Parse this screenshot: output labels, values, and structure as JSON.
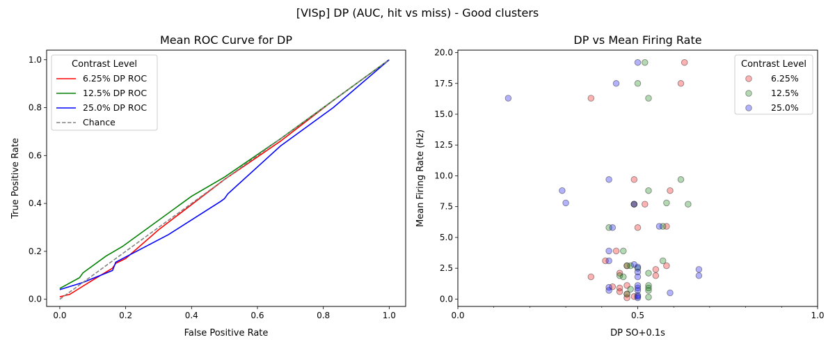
{
  "suptitle": "[VISp] DP (AUC, hit vs miss) - Good clusters",
  "chart_data": [
    {
      "type": "line",
      "title": "Mean ROC Curve for DP",
      "xlabel": "False Positive Rate",
      "ylabel": "True Positive Rate",
      "xlim": [
        -0.04,
        1.05
      ],
      "ylim": [
        -0.03,
        1.04
      ],
      "xticks": [
        0.0,
        0.2,
        0.4,
        0.6,
        0.8,
        1.0
      ],
      "yticks": [
        0.0,
        0.2,
        0.4,
        0.6,
        0.8,
        1.0
      ],
      "tick_labels_x": [
        "0.0",
        "0.2",
        "0.4",
        "0.6",
        "0.8",
        "1.0"
      ],
      "tick_labels_y": [
        "0.0",
        "0.2",
        "0.4",
        "0.6",
        "0.8",
        "1.0"
      ],
      "grid": false,
      "legend_title": "Contrast Level",
      "legend_position": "upper-left",
      "series": [
        {
          "name": "6.25% DP ROC",
          "color": "#ff0000",
          "dash": false,
          "x": [
            0.0,
            0.03,
            0.1,
            0.16,
            0.17,
            0.2,
            0.3,
            0.5,
            0.67,
            0.83,
            1.0
          ],
          "y": [
            0.01,
            0.02,
            0.08,
            0.13,
            0.15,
            0.17,
            0.29,
            0.5,
            0.66,
            0.83,
            1.0
          ]
        },
        {
          "name": "12.5% DP ROC",
          "color": "#008000",
          "dash": false,
          "x": [
            0.0,
            0.06,
            0.07,
            0.14,
            0.19,
            0.27,
            0.4,
            0.5,
            0.67,
            0.83,
            1.0
          ],
          "y": [
            0.045,
            0.09,
            0.11,
            0.18,
            0.22,
            0.3,
            0.43,
            0.51,
            0.67,
            0.83,
            1.0
          ]
        },
        {
          "name": "25.0% DP ROC",
          "color": "#0000ff",
          "dash": false,
          "x": [
            0.0,
            0.07,
            0.16,
            0.17,
            0.33,
            0.49,
            0.5,
            0.51,
            0.67,
            0.83,
            1.0
          ],
          "y": [
            0.04,
            0.07,
            0.12,
            0.155,
            0.27,
            0.41,
            0.42,
            0.44,
            0.64,
            0.8,
            1.0
          ]
        },
        {
          "name": "Chance",
          "color": "#808080",
          "dash": true,
          "x": [
            0.0,
            1.0
          ],
          "y": [
            0.0,
            1.0
          ]
        }
      ]
    },
    {
      "type": "scatter",
      "title": "DP vs Mean Firing Rate",
      "xlabel": "DP SO+0.1s",
      "ylabel": "Mean Firing Rate (Hz)",
      "xlim": [
        0.0,
        1.0
      ],
      "ylim": [
        -0.6,
        20.2
      ],
      "xticks": [
        0.0,
        0.5,
        1.0
      ],
      "tick_labels_x": [
        "0.0",
        "0.5",
        "1.0"
      ],
      "yticks": [
        0.0,
        2.5,
        5.0,
        7.5,
        10.0,
        12.5,
        15.0,
        17.5,
        20.0
      ],
      "tick_labels_y": [
        "0.0",
        "2.5",
        "5.0",
        "7.5",
        "10.0",
        "12.5",
        "15.0",
        "17.5",
        "20.0"
      ],
      "grid": false,
      "legend_title": "Contrast Level",
      "legend_position": "upper-right",
      "series": [
        {
          "name": "6.25%",
          "color": "#ff0000",
          "points": [
            [
              0.63,
              19.2
            ],
            [
              0.37,
              16.3
            ],
            [
              0.62,
              17.5
            ],
            [
              0.49,
              9.7
            ],
            [
              0.59,
              8.8
            ],
            [
              0.49,
              7.7
            ],
            [
              0.52,
              7.7
            ],
            [
              0.5,
              5.8
            ],
            [
              0.58,
              5.9
            ],
            [
              0.44,
              3.9
            ],
            [
              0.41,
              3.1
            ],
            [
              0.58,
              2.7
            ],
            [
              0.47,
              2.7
            ],
            [
              0.55,
              2.4
            ],
            [
              0.45,
              2.1
            ],
            [
              0.55,
              1.9
            ],
            [
              0.37,
              1.8
            ],
            [
              0.43,
              1.0
            ],
            [
              0.45,
              0.9
            ],
            [
              0.47,
              1.1
            ],
            [
              0.45,
              0.6
            ],
            [
              0.47,
              0.4
            ],
            [
              0.49,
              0.2
            ],
            [
              0.47,
              0.1
            ]
          ]
        },
        {
          "name": "12.5%",
          "color": "#008000",
          "points": [
            [
              0.52,
              19.2
            ],
            [
              0.5,
              17.5
            ],
            [
              0.53,
              16.3
            ],
            [
              0.62,
              9.7
            ],
            [
              0.53,
              8.8
            ],
            [
              0.58,
              7.8
            ],
            [
              0.64,
              7.7
            ],
            [
              0.49,
              7.7
            ],
            [
              0.57,
              5.9
            ],
            [
              0.42,
              5.8
            ],
            [
              0.46,
              3.9
            ],
            [
              0.57,
              3.1
            ],
            [
              0.47,
              2.7
            ],
            [
              0.48,
              2.7
            ],
            [
              0.5,
              2.5
            ],
            [
              0.53,
              2.1
            ],
            [
              0.45,
              1.9
            ],
            [
              0.46,
              1.8
            ],
            [
              0.53,
              1.1
            ],
            [
              0.53,
              0.9
            ],
            [
              0.48,
              0.8
            ],
            [
              0.53,
              0.7
            ],
            [
              0.47,
              0.4
            ],
            [
              0.53,
              0.15
            ]
          ]
        },
        {
          "name": "25.0%",
          "color": "#0000ff",
          "points": [
            [
              0.5,
              19.2
            ],
            [
              0.44,
              17.5
            ],
            [
              0.14,
              16.3
            ],
            [
              0.42,
              9.7
            ],
            [
              0.29,
              8.8
            ],
            [
              0.3,
              7.8
            ],
            [
              0.49,
              7.7
            ],
            [
              0.43,
              5.8
            ],
            [
              0.56,
              5.9
            ],
            [
              0.42,
              3.9
            ],
            [
              0.42,
              3.1
            ],
            [
              0.49,
              2.8
            ],
            [
              0.5,
              2.6
            ],
            [
              0.67,
              2.4
            ],
            [
              0.5,
              2.2
            ],
            [
              0.67,
              1.9
            ],
            [
              0.5,
              1.8
            ],
            [
              0.5,
              1.1
            ],
            [
              0.5,
              0.9
            ],
            [
              0.42,
              0.95
            ],
            [
              0.42,
              0.7
            ],
            [
              0.5,
              0.7
            ],
            [
              0.59,
              0.5
            ],
            [
              0.5,
              0.3
            ],
            [
              0.5,
              0.2
            ],
            [
              0.5,
              0.1
            ]
          ]
        }
      ]
    }
  ]
}
